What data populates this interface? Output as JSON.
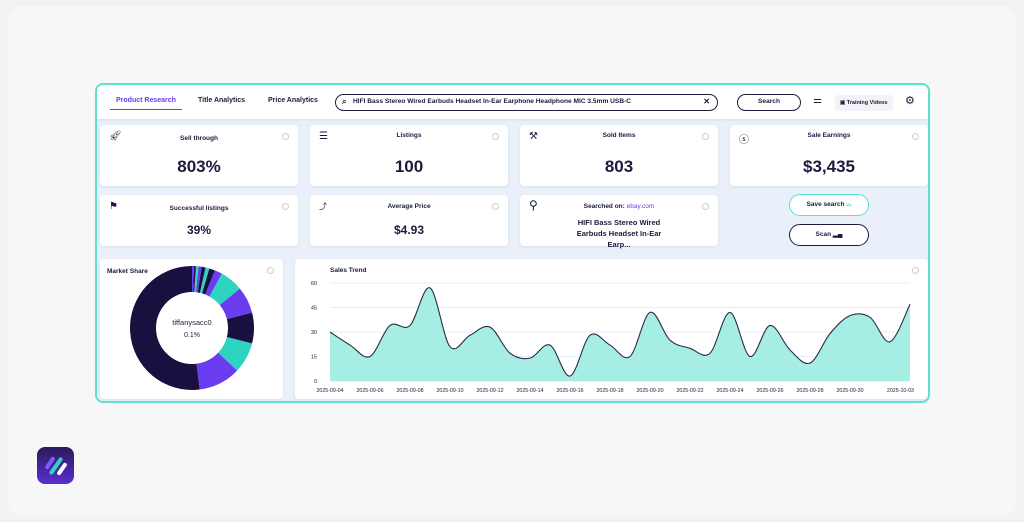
{
  "nav": {
    "tabs": [
      {
        "label": "Product Research",
        "active": true
      },
      {
        "label": "Title Analytics"
      },
      {
        "label": "Price Analytics"
      }
    ],
    "search_value": "HIFI Bass Stereo Wired Earbuds Headset In-Ear Earphone Headphone MIC 3.5mm USB-C",
    "search_button": "Search",
    "training_videos": "Training Videos"
  },
  "stats": {
    "sell_through": {
      "label": "Sell through",
      "value": "803%"
    },
    "listings": {
      "label": "Listings",
      "value": "100"
    },
    "sold_items": {
      "label": "Sold Items",
      "value": "803"
    },
    "sale_earnings": {
      "label": "Sale Earnings",
      "value": "$3,435"
    },
    "successful_listings": {
      "label": "Successful listings",
      "value": "39%"
    },
    "average_price": {
      "label": "Average Price",
      "value": "$4.93"
    },
    "searched_on": {
      "label": "Searched on:",
      "site": "ebay.com",
      "query": "HIFI Bass Stereo Wired Earbuds Headset In-Ear Earp..."
    }
  },
  "actions": {
    "save_search": "Save search",
    "scan": "Scan"
  },
  "colors": {
    "accent": "#6a3cf0",
    "teal": "#2dd4bf",
    "dark": "#1a1040",
    "border": "#5fe0c8",
    "area": "#a6ede3"
  },
  "chart_data": [
    {
      "type": "pie",
      "title": "Market Share",
      "center_label": "tiffanysacc0",
      "center_value": "0.1%",
      "slices": [
        {
          "color": "#1a1040",
          "value": 52
        },
        {
          "color": "#6a3cf0",
          "value": 11
        },
        {
          "color": "#2dd4bf",
          "value": 8
        },
        {
          "color": "#1a1040",
          "value": 8
        },
        {
          "color": "#6a3cf0",
          "value": 7
        },
        {
          "color": "#2dd4bf",
          "value": 6
        },
        {
          "color": "#6a3cf0",
          "value": 2
        },
        {
          "color": "#1a1040",
          "value": 1.5
        },
        {
          "color": "#2dd4bf",
          "value": 1
        },
        {
          "color": "#1a1040",
          "value": 1
        },
        {
          "color": "#6a3cf0",
          "value": 0.8
        },
        {
          "color": "#2dd4bf",
          "value": 0.7
        },
        {
          "color": "#1a1040",
          "value": 0.5
        },
        {
          "color": "#6a3cf0",
          "value": 0.5
        }
      ]
    },
    {
      "type": "area",
      "title": "Sales Trend",
      "ylim": [
        0,
        60
      ],
      "yticks": [
        0,
        15,
        30,
        45,
        60
      ],
      "grid": true,
      "x": [
        "2025-09-04",
        "2025-09-05",
        "2025-09-06",
        "2025-09-07",
        "2025-09-08",
        "2025-09-09",
        "2025-09-10",
        "2025-09-11",
        "2025-09-12",
        "2025-09-13",
        "2025-09-14",
        "2025-09-15",
        "2025-09-16",
        "2025-09-17",
        "2025-09-18",
        "2025-09-19",
        "2025-09-20",
        "2025-09-21",
        "2025-09-22",
        "2025-09-23",
        "2025-09-24",
        "2025-09-25",
        "2025-09-26",
        "2025-09-27",
        "2025-09-28",
        "2025-09-29",
        "2025-09-30",
        "2025-10-01",
        "2025-10-02",
        "2025-10-03"
      ],
      "values": [
        30,
        22,
        15,
        34,
        34,
        57,
        21,
        28,
        33,
        17,
        14,
        22,
        3,
        28,
        22,
        15,
        42,
        25,
        20,
        17,
        42,
        15,
        34,
        19,
        11,
        29,
        40,
        39,
        24,
        47
      ],
      "xticks": [
        "2025-09-04",
        "2025-09-06",
        "2025-09-08",
        "2025-09-10",
        "2025-09-12",
        "2025-09-14",
        "2025-09-16",
        "2025-09-18",
        "2025-09-20",
        "2025-09-22",
        "2025-09-24",
        "2025-09-26",
        "2025-09-28",
        "2025-09-30",
        "2025-10-03"
      ]
    }
  ]
}
